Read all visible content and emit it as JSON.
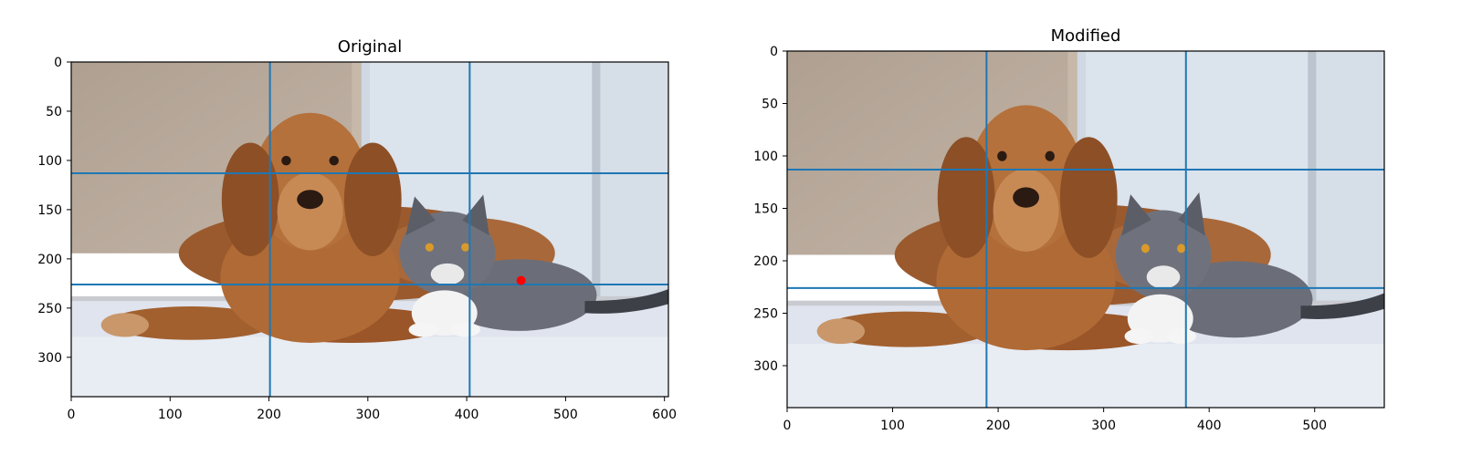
{
  "chart_data": [
    {
      "type": "image",
      "title": "Original",
      "x_range": [
        0,
        604
      ],
      "y_range": [
        0,
        340
      ],
      "x_ticks": [
        0,
        100,
        200,
        300,
        400,
        500,
        600
      ],
      "y_ticks": [
        0,
        50,
        100,
        150,
        200,
        250,
        300
      ],
      "vertical_lines_x": [
        201,
        403
      ],
      "horizontal_lines_y": [
        113,
        226
      ],
      "marker": {
        "x": 455,
        "y": 222,
        "color": "#ff0000"
      },
      "line_color": "#1f77b4"
    },
    {
      "type": "image",
      "title": "Modified",
      "x_range": [
        0,
        566
      ],
      "y_range": [
        0,
        340
      ],
      "x_ticks": [
        0,
        100,
        200,
        300,
        400,
        500
      ],
      "y_ticks": [
        0,
        50,
        100,
        150,
        200,
        250,
        300
      ],
      "vertical_lines_x": [
        189,
        378
      ],
      "horizontal_lines_y": [
        113,
        226
      ],
      "line_color": "#1f77b4"
    }
  ]
}
